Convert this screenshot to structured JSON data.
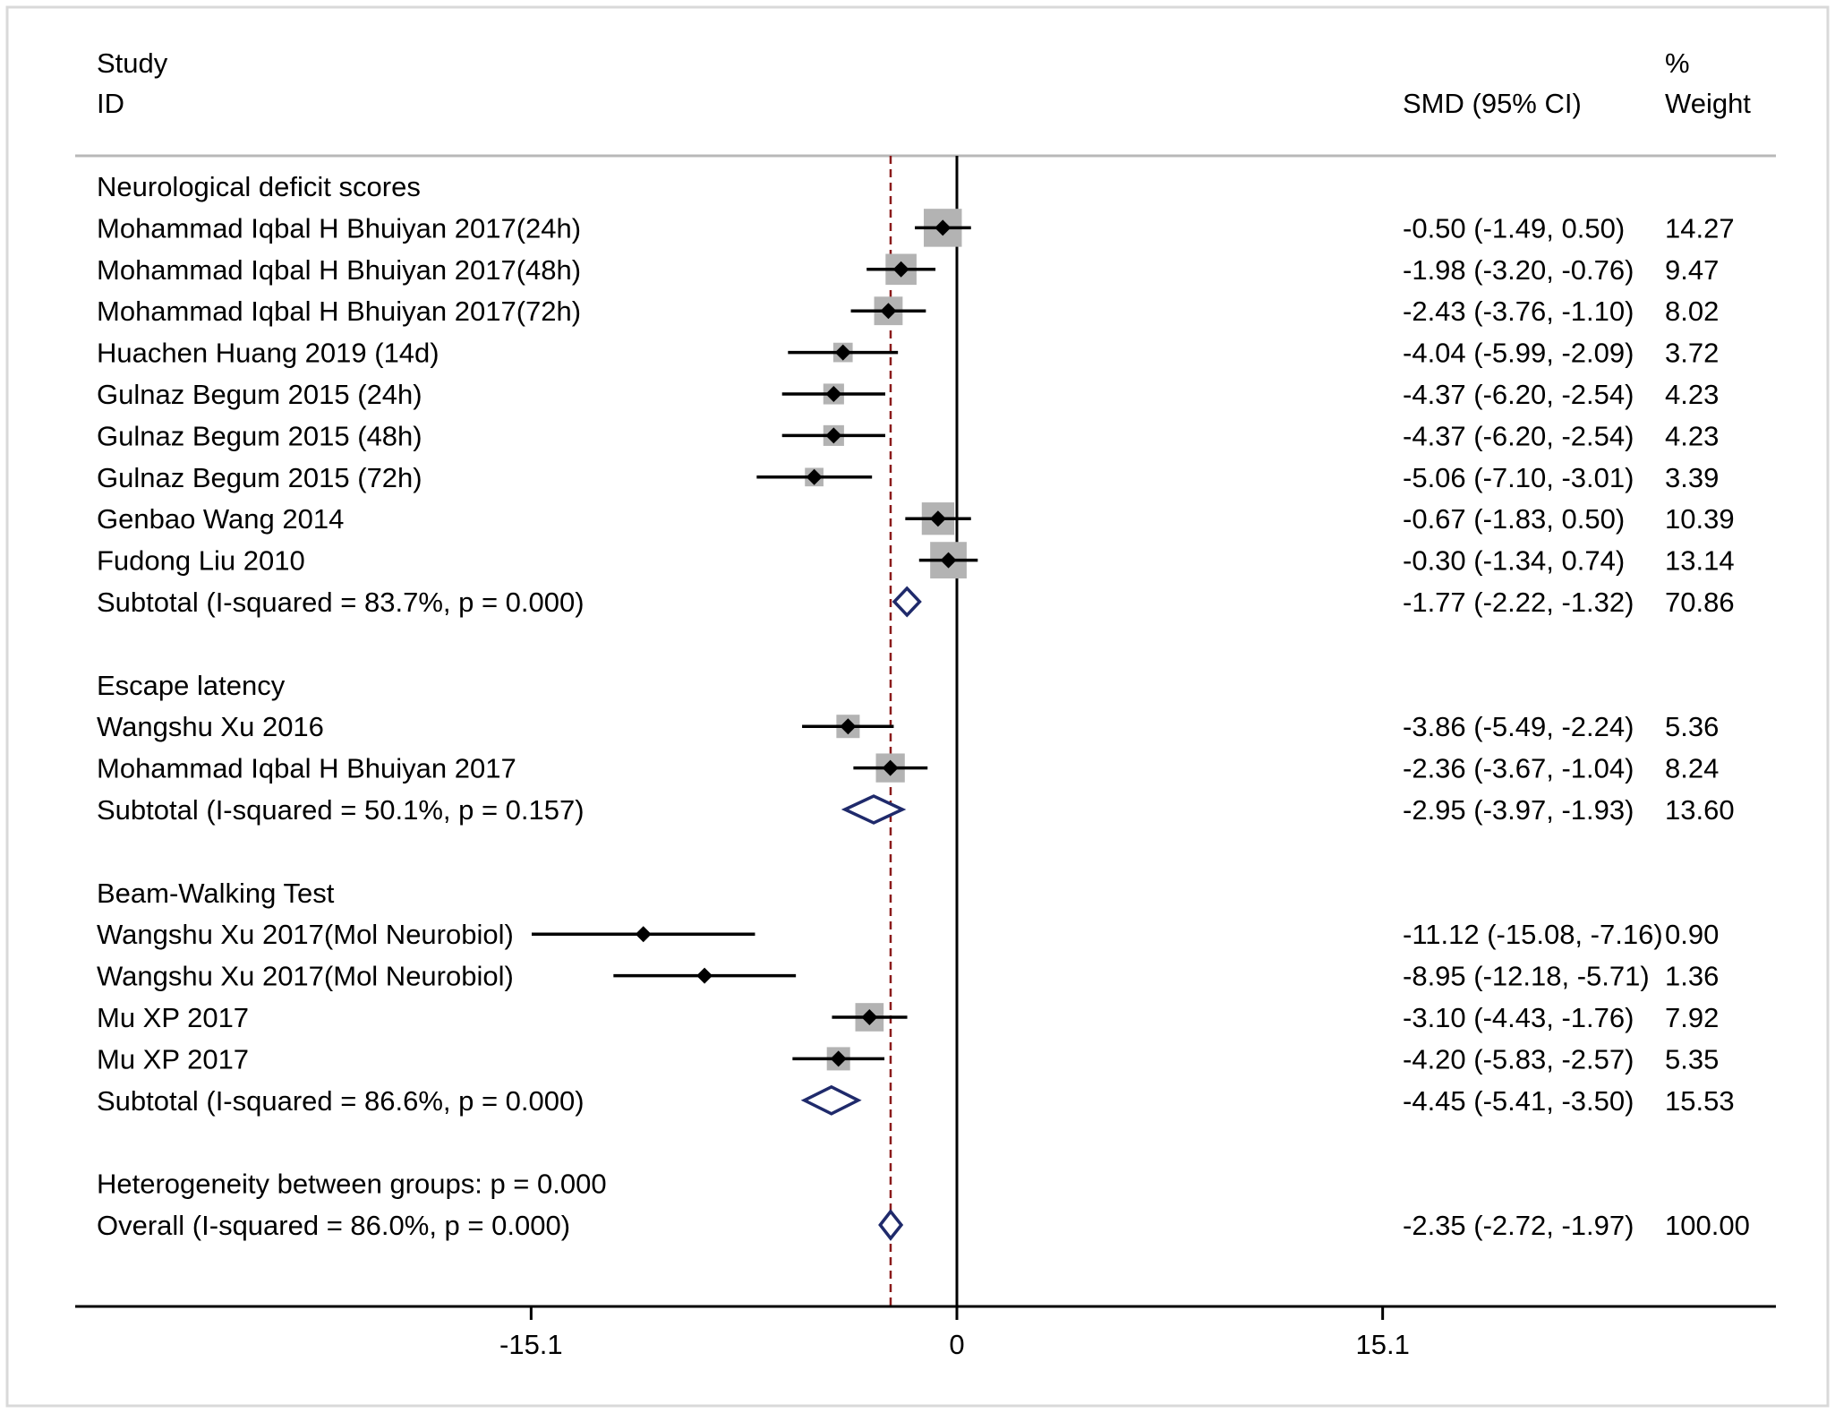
{
  "header": {
    "study_line1": "Study",
    "study_line2": "ID",
    "effect_label": "SMD (95% CI)",
    "weight_line1": "%",
    "weight_line2": "Weight"
  },
  "colors": {
    "line": "#000000",
    "weight_box": "#b3b3b3",
    "diamond": "#1f2a6b",
    "reference_line": "#8b1a1a",
    "frame": "#d9d9d9"
  },
  "chart_data": {
    "type": "forest",
    "xlim": [
      -27,
      27
    ],
    "xticks": [
      -15.1,
      0,
      15.1
    ],
    "xtick_labels": [
      "-15.1",
      "0",
      "15.1"
    ],
    "null_line": 0,
    "pooled_reference": -2.35,
    "rows": [
      {
        "kind": "heading",
        "label": "Neurological deficit scores"
      },
      {
        "kind": "study",
        "label": "Mohammad Iqbal H Bhuiyan 2017(24h)",
        "est": -0.5,
        "lo": -1.49,
        "hi": 0.5,
        "ci_text": "-0.50 (-1.49, 0.50)",
        "weight": 14.27,
        "weight_text": "14.27"
      },
      {
        "kind": "study",
        "label": "Mohammad Iqbal H Bhuiyan 2017(48h)",
        "est": -1.98,
        "lo": -3.2,
        "hi": -0.76,
        "ci_text": "-1.98 (-3.20, -0.76)",
        "weight": 9.47,
        "weight_text": "9.47"
      },
      {
        "kind": "study",
        "label": "Mohammad Iqbal H Bhuiyan 2017(72h)",
        "est": -2.43,
        "lo": -3.76,
        "hi": -1.1,
        "ci_text": "-2.43 (-3.76, -1.10)",
        "weight": 8.02,
        "weight_text": "8.02"
      },
      {
        "kind": "study",
        "label": "Huachen Huang 2019 (14d)",
        "est": -4.04,
        "lo": -5.99,
        "hi": -2.09,
        "ci_text": "-4.04 (-5.99, -2.09)",
        "weight": 3.72,
        "weight_text": "3.72"
      },
      {
        "kind": "study",
        "label": "Gulnaz Begum 2015 (24h)",
        "est": -4.37,
        "lo": -6.2,
        "hi": -2.54,
        "ci_text": "-4.37 (-6.20, -2.54)",
        "weight": 4.23,
        "weight_text": "4.23"
      },
      {
        "kind": "study",
        "label": "Gulnaz Begum 2015 (48h)",
        "est": -4.37,
        "lo": -6.2,
        "hi": -2.54,
        "ci_text": "-4.37 (-6.20, -2.54)",
        "weight": 4.23,
        "weight_text": "4.23"
      },
      {
        "kind": "study",
        "label": "Gulnaz Begum 2015 (72h)",
        "est": -5.06,
        "lo": -7.1,
        "hi": -3.01,
        "ci_text": "-5.06 (-7.10, -3.01)",
        "weight": 3.39,
        "weight_text": "3.39"
      },
      {
        "kind": "study",
        "label": "Genbao Wang 2014",
        "est": -0.67,
        "lo": -1.83,
        "hi": 0.5,
        "ci_text": "-0.67 (-1.83, 0.50)",
        "weight": 10.39,
        "weight_text": "10.39"
      },
      {
        "kind": "study",
        "label": "Fudong Liu 2010",
        "est": -0.3,
        "lo": -1.34,
        "hi": 0.74,
        "ci_text": "-0.30 (-1.34, 0.74)",
        "weight": 13.14,
        "weight_text": "13.14"
      },
      {
        "kind": "subtotal",
        "label": "Subtotal  (I-squared = 83.7%, p = 0.000)",
        "est": -1.77,
        "lo": -2.22,
        "hi": -1.32,
        "ci_text": "-1.77 (-2.22, -1.32)",
        "weight": 70.86,
        "weight_text": "70.86"
      },
      {
        "kind": "spacer"
      },
      {
        "kind": "heading",
        "label": "Escape latency"
      },
      {
        "kind": "study",
        "label": "Wangshu Xu 2016",
        "est": -3.86,
        "lo": -5.49,
        "hi": -2.24,
        "ci_text": "-3.86 (-5.49, -2.24)",
        "weight": 5.36,
        "weight_text": "5.36"
      },
      {
        "kind": "study",
        "label": "Mohammad Iqbal H Bhuiyan 2017",
        "est": -2.36,
        "lo": -3.67,
        "hi": -1.04,
        "ci_text": "-2.36 (-3.67, -1.04)",
        "weight": 8.24,
        "weight_text": "8.24"
      },
      {
        "kind": "subtotal",
        "label": "Subtotal  (I-squared = 50.1%, p = 0.157)",
        "est": -2.95,
        "lo": -3.97,
        "hi": -1.93,
        "ci_text": "-2.95 (-3.97, -1.93)",
        "weight": 13.6,
        "weight_text": "13.60"
      },
      {
        "kind": "spacer"
      },
      {
        "kind": "heading",
        "label": "Beam-Walking Test"
      },
      {
        "kind": "study",
        "label": "Wangshu Xu 2017(Mol Neurobiol)",
        "est": -11.12,
        "lo": -15.08,
        "hi": -7.16,
        "ci_text": "-11.12 (-15.08, -7.16)",
        "weight": 0.9,
        "weight_text": "0.90"
      },
      {
        "kind": "study",
        "label": "Wangshu Xu 2017(Mol Neurobiol)",
        "est": -8.95,
        "lo": -12.18,
        "hi": -5.71,
        "ci_text": "-8.95 (-12.18, -5.71)",
        "weight": 1.36,
        "weight_text": "1.36"
      },
      {
        "kind": "study",
        "label": "Mu XP 2017",
        "est": -3.1,
        "lo": -4.43,
        "hi": -1.76,
        "ci_text": "-3.10 (-4.43, -1.76)",
        "weight": 7.92,
        "weight_text": "7.92"
      },
      {
        "kind": "study",
        "label": "Mu XP 2017",
        "est": -4.2,
        "lo": -5.83,
        "hi": -2.57,
        "ci_text": "-4.20 (-5.83, -2.57)",
        "weight": 5.35,
        "weight_text": "5.35"
      },
      {
        "kind": "subtotal",
        "label": "Subtotal  (I-squared = 86.6%, p = 0.000)",
        "est": -4.45,
        "lo": -5.41,
        "hi": -3.5,
        "ci_text": "-4.45 (-5.41, -3.50)",
        "weight": 15.53,
        "weight_text": "15.53"
      },
      {
        "kind": "spacer"
      },
      {
        "kind": "heading",
        "label": "Heterogeneity between groups: p = 0.000"
      },
      {
        "kind": "overall",
        "label": "Overall  (I-squared = 86.0%, p = 0.000)",
        "est": -2.35,
        "lo": -2.72,
        "hi": -1.97,
        "ci_text": "-2.35 (-2.72, -1.97)",
        "weight": 100.0,
        "weight_text": "100.00"
      }
    ]
  }
}
